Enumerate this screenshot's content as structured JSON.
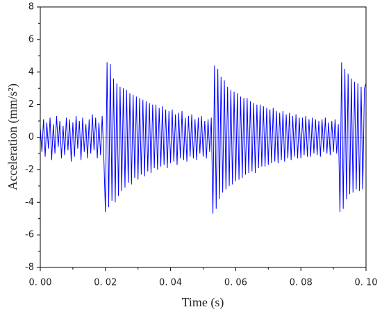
{
  "chart_data": {
    "type": "line",
    "xlabel": "Time (s)",
    "ylabel": "Acceleration (mm/s²)",
    "x": [
      0,
      0.0005,
      0.001,
      0.0015,
      0.002,
      0.0025,
      0.003,
      0.0035,
      0.004,
      0.0045,
      0.005,
      0.0055,
      0.006,
      0.0065,
      0.007,
      0.0075,
      0.008,
      0.0085,
      0.009,
      0.0095,
      0.01,
      0.0105,
      0.011,
      0.0115,
      0.012,
      0.0125,
      0.013,
      0.0135,
      0.014,
      0.0145,
      0.015,
      0.0155,
      0.016,
      0.0165,
      0.017,
      0.0175,
      0.018,
      0.0185,
      0.019,
      0.0195,
      0.02,
      0.0205,
      0.021,
      0.0215,
      0.022,
      0.0225,
      0.023,
      0.0235,
      0.024,
      0.0245,
      0.025,
      0.0255,
      0.026,
      0.0265,
      0.027,
      0.0275,
      0.028,
      0.0285,
      0.029,
      0.0295,
      0.03,
      0.0305,
      0.031,
      0.0315,
      0.032,
      0.0325,
      0.033,
      0.0335,
      0.034,
      0.0345,
      0.035,
      0.0355,
      0.036,
      0.0365,
      0.037,
      0.0375,
      0.038,
      0.0385,
      0.039,
      0.0395,
      0.04,
      0.0405,
      0.041,
      0.0415,
      0.042,
      0.0425,
      0.043,
      0.0435,
      0.044,
      0.0445,
      0.045,
      0.0455,
      0.046,
      0.0465,
      0.047,
      0.0475,
      0.048,
      0.0485,
      0.049,
      0.0495,
      0.05,
      0.0505,
      0.051,
      0.0515,
      0.052,
      0.0525,
      0.053,
      0.0535,
      0.054,
      0.0545,
      0.055,
      0.0555,
      0.056,
      0.0565,
      0.057,
      0.0575,
      0.058,
      0.0585,
      0.059,
      0.0595,
      0.06,
      0.0605,
      0.061,
      0.0615,
      0.062,
      0.0625,
      0.063,
      0.0635,
      0.064,
      0.0645,
      0.065,
      0.0655,
      0.066,
      0.0665,
      0.067,
      0.0675,
      0.068,
      0.0685,
      0.069,
      0.0695,
      0.07,
      0.0705,
      0.071,
      0.0715,
      0.072,
      0.0725,
      0.073,
      0.0735,
      0.074,
      0.0745,
      0.075,
      0.0755,
      0.076,
      0.0765,
      0.077,
      0.0775,
      0.078,
      0.0785,
      0.079,
      0.0795,
      0.08,
      0.0805,
      0.081,
      0.0815,
      0.082,
      0.0825,
      0.083,
      0.0835,
      0.084,
      0.0845,
      0.085,
      0.0855,
      0.086,
      0.0865,
      0.087,
      0.0875,
      0.088,
      0.0885,
      0.089,
      0.0895,
      0.09,
      0.0905,
      0.091,
      0.0915,
      0.092,
      0.0925,
      0.093,
      0.0935,
      0.094,
      0.0945,
      0.095,
      0.0955,
      0.096,
      0.0965,
      0.097,
      0.0975,
      0.098,
      0.0985,
      0.099,
      0.0995,
      0.1
    ],
    "series": [
      {
        "color": "#0000ff",
        "values": [
          0.6,
          -0.9,
          1.1,
          -1.2,
          0.9,
          -0.7,
          1.2,
          -1.4,
          0.8,
          -1.0,
          1.3,
          -0.6,
          1.0,
          -1.3,
          0.7,
          -1.1,
          1.2,
          -0.8,
          1.1,
          -1.5,
          0.9,
          -1.2,
          1.3,
          -0.7,
          1.0,
          -1.4,
          1.2,
          -0.9,
          0.8,
          -1.3,
          1.1,
          -1.0,
          1.4,
          -0.8,
          1.2,
          -1.3,
          0.9,
          -1.1,
          1.3,
          -1.2,
          -4.6,
          4.6,
          -4.3,
          4.5,
          -3.9,
          3.6,
          -4.0,
          3.3,
          -3.6,
          3.1,
          -3.3,
          3.0,
          -3.1,
          2.9,
          -2.8,
          2.7,
          -2.9,
          2.6,
          -2.5,
          2.5,
          -2.6,
          2.4,
          -2.3,
          2.3,
          -2.4,
          2.2,
          -2.1,
          2.1,
          -2.2,
          2.0,
          -1.9,
          2.0,
          -2.0,
          1.8,
          -1.8,
          1.9,
          -1.7,
          1.7,
          -1.9,
          1.6,
          -1.6,
          1.7,
          -1.5,
          1.4,
          -1.7,
          1.5,
          -1.3,
          1.6,
          -1.4,
          1.2,
          -1.5,
          1.3,
          -1.2,
          1.4,
          -1.3,
          1.1,
          -1.4,
          1.2,
          -1.0,
          1.3,
          -1.2,
          1.0,
          -1.3,
          1.1,
          -0.9,
          1.2,
          -4.7,
          4.4,
          -4.4,
          4.2,
          -3.8,
          3.7,
          -3.4,
          3.5,
          -3.2,
          3.1,
          -3.0,
          2.9,
          -2.9,
          2.8,
          -2.7,
          2.7,
          -2.6,
          2.5,
          -2.5,
          2.4,
          -2.3,
          2.4,
          -2.2,
          2.2,
          -2.1,
          2.1,
          -2.2,
          2.0,
          -1.9,
          2.0,
          -1.8,
          1.9,
          -1.8,
          1.8,
          -1.7,
          1.7,
          -1.6,
          1.8,
          -1.5,
          1.6,
          -1.6,
          1.5,
          -1.4,
          1.6,
          -1.5,
          1.4,
          -1.3,
          1.5,
          -1.4,
          1.3,
          -1.2,
          1.4,
          -1.3,
          1.2,
          -1.3,
          1.2,
          -1.1,
          1.3,
          -1.2,
          1.1,
          -1.2,
          1.2,
          -1.0,
          1.1,
          -1.1,
          1.0,
          -1.2,
          1.1,
          -0.9,
          1.2,
          -1.0,
          0.9,
          -1.1,
          1.0,
          -0.9,
          1.1,
          -1.0,
          0.8,
          -4.6,
          4.6,
          -4.4,
          4.2,
          -3.8,
          3.9,
          -3.5,
          3.6,
          -3.4,
          3.4,
          -3.2,
          3.3,
          -3.3,
          3.1,
          -3.2,
          3.0,
          3.3
        ]
      }
    ],
    "xlim": [
      0,
      0.1
    ],
    "xticks": [
      {
        "value": 0,
        "label": "0. 00"
      },
      {
        "value": 0.02,
        "label": "0. 02"
      },
      {
        "value": 0.04,
        "label": "0. 04"
      },
      {
        "value": 0.06,
        "label": "0. 06"
      },
      {
        "value": 0.08,
        "label": "0. 08"
      },
      {
        "value": 0.1,
        "label": "0. 10"
      }
    ],
    "ylim": [
      -8,
      8
    ],
    "yticks": [
      -8,
      -6,
      -4,
      -2,
      0,
      2,
      4,
      6,
      8
    ]
  }
}
